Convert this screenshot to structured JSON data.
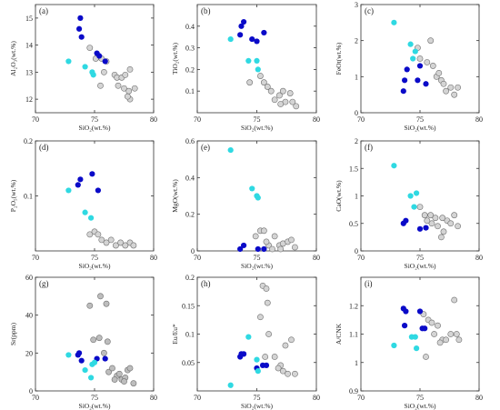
{
  "chart_data": [
    {
      "panel": "(a)",
      "type": "scatter",
      "xlabel": "SiO2(wt.%)",
      "ylabel": "Al2O3(wt.%)",
      "xlim": [
        70,
        80
      ],
      "ylim": [
        11.5,
        15.5
      ],
      "xticks": [
        70,
        75,
        80
      ],
      "yticks": [
        12,
        13,
        14,
        15
      ],
      "series": [
        {
          "color": "#0a0ac8",
          "points": [
            [
              73.8,
              15.0
            ],
            [
              73.7,
              14.6
            ],
            [
              73.9,
              14.3
            ],
            [
              75.2,
              13.7
            ],
            [
              75.4,
              13.6
            ],
            [
              75.9,
              13.4
            ]
          ]
        },
        {
          "color": "#2fd9e2",
          "points": [
            [
              72.8,
              13.4
            ],
            [
              74.2,
              13.2
            ],
            [
              74.8,
              13.0
            ],
            [
              74.9,
              12.9
            ]
          ]
        },
        {
          "color": "#d4d4d4",
          "points": [
            [
              74.6,
              13.9
            ],
            [
              75.1,
              13.5
            ],
            [
              75.6,
              13.5
            ],
            [
              76.0,
              13.4
            ],
            [
              75.8,
              13.0
            ],
            [
              76.7,
              12.9
            ],
            [
              76.9,
              12.8
            ],
            [
              77.3,
              12.8
            ],
            [
              77.6,
              12.9
            ],
            [
              77.0,
              12.5
            ],
            [
              77.5,
              12.4
            ],
            [
              77.9,
              12.3
            ],
            [
              78.0,
              12.0
            ],
            [
              77.8,
              12.1
            ],
            [
              78.4,
              12.4
            ],
            [
              78.0,
              13.1
            ],
            [
              75.5,
              12.5
            ]
          ]
        }
      ]
    },
    {
      "panel": "(b)",
      "type": "scatter",
      "xlabel": "SiO2(wt.%)",
      "ylabel": "TiO2(wt.%)",
      "xlim": [
        70,
        80
      ],
      "ylim": [
        0,
        0.5
      ],
      "xticks": [
        70,
        75,
        80
      ],
      "yticks": [
        0.1,
        0.2,
        0.3,
        0.4
      ],
      "series": [
        {
          "color": "#0a0ac8",
          "points": [
            [
              73.6,
              0.36
            ],
            [
              73.7,
              0.4
            ],
            [
              73.9,
              0.42
            ],
            [
              75.0,
              0.33
            ],
            [
              75.6,
              0.37
            ],
            [
              74.6,
              0.34
            ]
          ]
        },
        {
          "color": "#2fd9e2",
          "points": [
            [
              72.8,
              0.34
            ],
            [
              74.3,
              0.24
            ],
            [
              75.0,
              0.24
            ],
            [
              75.1,
              0.2
            ]
          ]
        },
        {
          "color": "#d4d4d4",
          "points": [
            [
              74.4,
              0.14
            ],
            [
              75.3,
              0.17
            ],
            [
              75.6,
              0.14
            ],
            [
              76.2,
              0.1
            ],
            [
              76.9,
              0.08
            ],
            [
              77.2,
              0.1
            ],
            [
              77.4,
              0.05
            ],
            [
              77.8,
              0.09
            ],
            [
              78.0,
              0.05
            ],
            [
              78.3,
              0.03
            ],
            [
              77.0,
              0.04
            ],
            [
              76.5,
              0.06
            ],
            [
              75.9,
              0.12
            ]
          ]
        }
      ]
    },
    {
      "panel": "(c)",
      "type": "scatter",
      "xlabel": "SiO2(wt.%)",
      "ylabel": "FeOt(wt.%)",
      "xlim": [
        70,
        80
      ],
      "ylim": [
        0,
        3
      ],
      "xticks": [
        70,
        75,
        80
      ],
      "yticks": [
        0,
        1,
        2,
        3
      ],
      "series": [
        {
          "color": "#0a0ac8",
          "points": [
            [
              73.6,
              0.6
            ],
            [
              73.7,
              0.9
            ],
            [
              73.9,
              1.2
            ],
            [
              75.0,
              1.3
            ],
            [
              74.8,
              0.9
            ],
            [
              75.5,
              0.8
            ]
          ]
        },
        {
          "color": "#2fd9e2",
          "points": [
            [
              72.8,
              2.5
            ],
            [
              74.2,
              1.9
            ],
            [
              74.6,
              1.7
            ],
            [
              74.4,
              1.5
            ]
          ]
        },
        {
          "color": "#d4d4d4",
          "points": [
            [
              74.8,
              1.8
            ],
            [
              75.0,
              1.5
            ],
            [
              75.9,
              2.0
            ],
            [
              75.6,
              1.4
            ],
            [
              76.1,
              1.3
            ],
            [
              76.4,
              1.0
            ],
            [
              76.8,
              0.9
            ],
            [
              77.0,
              0.8
            ],
            [
              77.2,
              0.6
            ],
            [
              77.6,
              0.7
            ],
            [
              77.9,
              0.5
            ],
            [
              78.2,
              0.7
            ],
            [
              76.6,
              1.1
            ]
          ]
        }
      ]
    },
    {
      "panel": "(d)",
      "type": "scatter",
      "xlabel": "SiO2(wt.%)",
      "ylabel": "P2O5(wt.%)",
      "xlim": [
        70,
        80
      ],
      "ylim": [
        0,
        0.2
      ],
      "xticks": [
        70,
        75,
        80
      ],
      "yticks": [
        0.1,
        0.2
      ],
      "series": [
        {
          "color": "#0a0ac8",
          "points": [
            [
              73.6,
              0.12
            ],
            [
              73.8,
              0.13
            ],
            [
              74.8,
              0.14
            ],
            [
              75.3,
              0.11
            ]
          ]
        },
        {
          "color": "#2fd9e2",
          "points": [
            [
              72.8,
              0.11
            ],
            [
              74.2,
              0.07
            ],
            [
              74.7,
              0.06
            ]
          ]
        },
        {
          "color": "#d4d4d4",
          "points": [
            [
              74.6,
              0.03
            ],
            [
              75.0,
              0.035
            ],
            [
              75.6,
              0.02
            ],
            [
              76.0,
              0.015
            ],
            [
              76.4,
              0.02
            ],
            [
              76.8,
              0.01
            ],
            [
              77.2,
              0.015
            ],
            [
              77.6,
              0.01
            ],
            [
              78.0,
              0.015
            ],
            [
              78.3,
              0.01
            ],
            [
              75.3,
              0.03
            ]
          ]
        }
      ]
    },
    {
      "panel": "(e)",
      "type": "scatter",
      "xlabel": "SiO2(wt.%)",
      "ylabel": "MgO(wt.%)",
      "xlim": [
        70,
        80
      ],
      "ylim": [
        0,
        0.6
      ],
      "xticks": [
        70,
        75,
        80
      ],
      "yticks": [
        0,
        0.2,
        0.4,
        0.6
      ],
      "series": [
        {
          "color": "#0a0ac8",
          "points": [
            [
              73.6,
              0.01
            ],
            [
              73.9,
              0.03
            ],
            [
              75.1,
              0.01
            ],
            [
              75.6,
              0.01
            ]
          ]
        },
        {
          "color": "#2fd9e2",
          "points": [
            [
              72.8,
              0.55
            ],
            [
              74.6,
              0.34
            ],
            [
              75.0,
              0.3
            ],
            [
              75.1,
              0.29
            ]
          ]
        },
        {
          "color": "#d4d4d4",
          "points": [
            [
              74.9,
              0.08
            ],
            [
              75.3,
              0.11
            ],
            [
              75.6,
              0.11
            ],
            [
              76.0,
              0.03
            ],
            [
              76.5,
              0.08
            ],
            [
              76.9,
              0.03
            ],
            [
              77.2,
              0.04
            ],
            [
              77.6,
              0.05
            ],
            [
              77.9,
              0.06
            ],
            [
              78.2,
              0.02
            ],
            [
              76.3,
              0.01
            ],
            [
              77.0,
              0.01
            ],
            [
              75.8,
              0.05
            ]
          ]
        }
      ]
    },
    {
      "panel": "(f)",
      "type": "scatter",
      "xlabel": "SiO2(wt.%)",
      "ylabel": "CaO(wt.%)",
      "xlim": [
        70,
        80
      ],
      "ylim": [
        0,
        2
      ],
      "xticks": [
        70,
        75,
        80
      ],
      "yticks": [
        0,
        0.5,
        1.0,
        1.5,
        2.0
      ],
      "series": [
        {
          "color": "#0a0ac8",
          "points": [
            [
              73.6,
              0.5
            ],
            [
              73.8,
              0.55
            ],
            [
              75.0,
              0.4
            ],
            [
              75.5,
              0.42
            ]
          ]
        },
        {
          "color": "#2fd9e2",
          "points": [
            [
              72.8,
              1.55
            ],
            [
              74.2,
              1.0
            ],
            [
              74.7,
              1.05
            ],
            [
              74.5,
              0.8
            ]
          ]
        },
        {
          "color": "#d4d4d4",
          "points": [
            [
              75.0,
              0.8
            ],
            [
              75.4,
              0.65
            ],
            [
              75.9,
              0.65
            ],
            [
              76.3,
              0.6
            ],
            [
              76.5,
              0.45
            ],
            [
              76.9,
              0.6
            ],
            [
              77.0,
              0.35
            ],
            [
              77.3,
              0.55
            ],
            [
              77.6,
              0.5
            ],
            [
              77.9,
              0.65
            ],
            [
              78.2,
              0.45
            ],
            [
              76.8,
              0.25
            ],
            [
              76.0,
              0.5
            ],
            [
              75.6,
              0.55
            ]
          ]
        }
      ]
    },
    {
      "panel": "(g)",
      "type": "scatter",
      "xlabel": "SiO2(wt.%)",
      "ylabel": "Sr(ppm)",
      "xlim": [
        70,
        80
      ],
      "ylim": [
        0,
        60
      ],
      "xticks": [
        70,
        75,
        80
      ],
      "yticks": [
        0,
        20,
        40,
        60
      ],
      "series": [
        {
          "color": "#0a0ac8",
          "points": [
            [
              73.6,
              19
            ],
            [
              73.7,
              20
            ],
            [
              73.9,
              16
            ],
            [
              75.2,
              17
            ],
            [
              75.9,
              17
            ]
          ]
        },
        {
          "color": "#2fd9e2",
          "points": [
            [
              72.8,
              19
            ],
            [
              74.2,
              11
            ],
            [
              74.7,
              7
            ],
            [
              74.8,
              14
            ],
            [
              75.0,
              15
            ]
          ]
        },
        {
          "color": "#bdbdbd",
          "points": [
            [
              74.6,
              45
            ],
            [
              74.9,
              27
            ],
            [
              75.5,
              50
            ],
            [
              76.0,
              46
            ],
            [
              75.4,
              28
            ],
            [
              76.1,
              26
            ],
            [
              75.8,
              20
            ],
            [
              76.2,
              10
            ],
            [
              76.5,
              12
            ],
            [
              76.9,
              8
            ],
            [
              77.1,
              9
            ],
            [
              77.3,
              6
            ],
            [
              77.6,
              7
            ],
            [
              77.8,
              11
            ],
            [
              78.0,
              12
            ],
            [
              78.3,
              4
            ],
            [
              77.5,
              5
            ],
            [
              76.7,
              6
            ]
          ]
        }
      ]
    },
    {
      "panel": "(h)",
      "type": "scatter",
      "xlabel": "SiO2(wt.%)",
      "ylabel": "Eu/Eu*",
      "xlim": [
        70,
        80
      ],
      "ylim": [
        0,
        0.2
      ],
      "xticks": [
        70,
        75,
        80
      ],
      "yticks": [
        0.05,
        0.1,
        0.15,
        0.2
      ],
      "series": [
        {
          "color": "#0a0ac8",
          "points": [
            [
              73.6,
              0.06
            ],
            [
              73.7,
              0.065
            ],
            [
              73.9,
              0.065
            ],
            [
              75.0,
              0.04
            ],
            [
              75.5,
              0.045
            ],
            [
              75.8,
              0.045
            ]
          ]
        },
        {
          "color": "#2fd9e2",
          "points": [
            [
              72.8,
              0.01
            ],
            [
              74.3,
              0.095
            ],
            [
              75.0,
              0.055
            ],
            [
              75.1,
              0.035
            ]
          ]
        },
        {
          "color": "#d4d4d4",
          "points": [
            [
              75.5,
              0.185
            ],
            [
              75.8,
              0.18
            ],
            [
              75.3,
              0.13
            ],
            [
              75.9,
              0.155
            ],
            [
              76.0,
              0.1
            ],
            [
              76.5,
              0.06
            ],
            [
              77.0,
              0.045
            ],
            [
              77.2,
              0.035
            ],
            [
              77.6,
              0.03
            ],
            [
              77.9,
              0.09
            ],
            [
              78.2,
              0.03
            ],
            [
              76.8,
              0.04
            ],
            [
              75.7,
              0.06
            ],
            [
              77.4,
              0.08
            ]
          ]
        }
      ]
    },
    {
      "panel": "(i)",
      "type": "scatter",
      "xlabel": "SiO2(wt.%)",
      "ylabel": "A/CNK",
      "xlim": [
        70,
        80
      ],
      "ylim": [
        0.9,
        1.3
      ],
      "xticks": [
        70,
        75,
        80
      ],
      "yticks": [
        0.9,
        1.0,
        1.1,
        1.2
      ],
      "series": [
        {
          "color": "#0a0ac8",
          "points": [
            [
              73.6,
              1.19
            ],
            [
              73.7,
              1.13
            ],
            [
              73.8,
              1.18
            ],
            [
              75.0,
              1.18
            ],
            [
              75.2,
              1.12
            ],
            [
              75.4,
              1.12
            ]
          ]
        },
        {
          "color": "#2fd9e2",
          "points": [
            [
              72.8,
              1.06
            ],
            [
              74.3,
              1.09
            ],
            [
              74.6,
              1.09
            ],
            [
              74.7,
              1.05
            ]
          ]
        },
        {
          "color": "#d4d4d4",
          "points": [
            [
              75.3,
              1.17
            ],
            [
              75.7,
              1.15
            ],
            [
              76.0,
              1.14
            ],
            [
              76.2,
              1.1
            ],
            [
              76.5,
              1.13
            ],
            [
              76.9,
              1.08
            ],
            [
              77.2,
              1.08
            ],
            [
              77.6,
              1.1
            ],
            [
              77.9,
              1.22
            ],
            [
              78.1,
              1.1
            ],
            [
              78.3,
              1.08
            ],
            [
              75.5,
              1.02
            ],
            [
              76.7,
              1.07
            ]
          ]
        }
      ]
    }
  ]
}
